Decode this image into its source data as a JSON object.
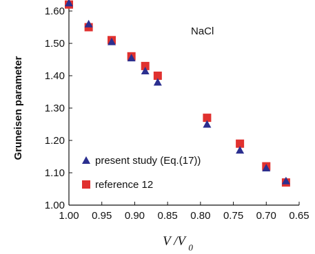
{
  "chart_data": {
    "type": "scatter",
    "title": "",
    "xlabel": "V/V0",
    "xlabel_parts": {
      "main": "V /V",
      "sub": "0"
    },
    "ylabel": "Gruneisen parameter",
    "xlim": [
      1.0,
      0.65
    ],
    "ylim": [
      1.0,
      1.65
    ],
    "x_reversed": true,
    "x_ticks": [
      "1.00",
      "0.95",
      "0.90",
      "0.85",
      "0.80",
      "0.75",
      "0.70",
      "0.65"
    ],
    "y_ticks": [
      "1.00",
      "1.10",
      "1.20",
      "1.30",
      "1.40",
      "1.50",
      "1.60"
    ],
    "grid": false,
    "legend_position": "bottom-left",
    "annotation": "NaCl",
    "series": [
      {
        "name": "present study (Eq.(17))",
        "marker": "triangle",
        "color": "#2b2f8f",
        "points": [
          [
            1.0,
            1.625
          ],
          [
            0.97,
            1.56
          ],
          [
            0.935,
            1.505
          ],
          [
            0.905,
            1.455
          ],
          [
            0.884,
            1.415
          ],
          [
            0.865,
            1.38
          ],
          [
            0.79,
            1.25
          ],
          [
            0.74,
            1.17
          ],
          [
            0.7,
            1.115
          ],
          [
            0.67,
            1.075
          ]
        ]
      },
      {
        "name": "reference 12",
        "marker": "square",
        "color": "#e0312f",
        "points": [
          [
            1.0,
            1.62
          ],
          [
            0.97,
            1.55
          ],
          [
            0.935,
            1.51
          ],
          [
            0.905,
            1.46
          ],
          [
            0.884,
            1.43
          ],
          [
            0.865,
            1.4
          ],
          [
            0.79,
            1.27
          ],
          [
            0.74,
            1.19
          ],
          [
            0.7,
            1.12
          ],
          [
            0.67,
            1.07
          ]
        ]
      }
    ]
  }
}
